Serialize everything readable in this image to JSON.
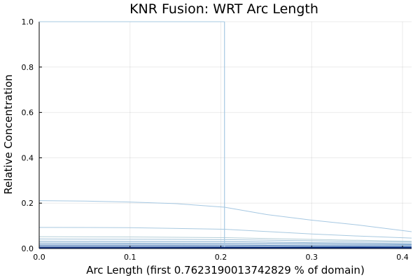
{
  "chart_data": {
    "type": "line",
    "title": "KNR Fusion: WRT Arc Length",
    "xlabel": "Arc Length (first 0.7623190013742829 % of domain)",
    "ylabel": "Relative Concentration",
    "xlim": [
      0,
      0.41
    ],
    "ylim": [
      0,
      1.0
    ],
    "xticks": [
      "0.0",
      "0.1",
      "0.2",
      "0.3",
      "0.4"
    ],
    "yticks": [
      "0.0",
      "0.2",
      "0.4",
      "0.6",
      "0.8",
      "1.0"
    ],
    "grid": true,
    "legend": "none",
    "vertical_line": {
      "x": 0.204,
      "y": [
        0,
        1.0
      ]
    },
    "series": [
      {
        "color": "#a6c8e2",
        "points": [
          [
            0,
            0.211
          ],
          [
            0.05,
            0.209
          ],
          [
            0.1,
            0.205
          ],
          [
            0.15,
            0.198
          ],
          [
            0.204,
            0.182
          ],
          [
            0.25,
            0.15
          ],
          [
            0.3,
            0.125
          ],
          [
            0.35,
            0.104
          ],
          [
            0.41,
            0.074
          ]
        ]
      },
      {
        "color": "#a8c9e0",
        "points": [
          [
            0,
            0.093
          ],
          [
            0.1,
            0.092
          ],
          [
            0.204,
            0.085
          ],
          [
            0.25,
            0.075
          ],
          [
            0.3,
            0.064
          ],
          [
            0.35,
            0.055
          ],
          [
            0.41,
            0.046
          ]
        ]
      },
      {
        "color": "#b5cfd8",
        "points": [
          [
            0,
            0.052
          ],
          [
            0.1,
            0.051
          ],
          [
            0.204,
            0.048
          ],
          [
            0.3,
            0.04
          ],
          [
            0.41,
            0.032
          ]
        ]
      },
      {
        "color": "#9fc0d6",
        "points": [
          [
            0,
            0.042
          ],
          [
            0.1,
            0.041
          ],
          [
            0.204,
            0.039
          ],
          [
            0.3,
            0.034
          ],
          [
            0.41,
            0.028
          ]
        ]
      },
      {
        "color": "#7fa9cc",
        "points": [
          [
            0,
            0.032
          ],
          [
            0.1,
            0.031
          ],
          [
            0.204,
            0.03
          ],
          [
            0.3,
            0.026
          ],
          [
            0.41,
            0.022
          ]
        ]
      },
      {
        "color": "#5b8fc0",
        "points": [
          [
            0,
            0.024
          ],
          [
            0.1,
            0.023
          ],
          [
            0.204,
            0.022
          ],
          [
            0.3,
            0.02
          ],
          [
            0.41,
            0.017
          ]
        ]
      },
      {
        "color": "#3f74b3",
        "points": [
          [
            0,
            0.016
          ],
          [
            0.1,
            0.016
          ],
          [
            0.204,
            0.015
          ],
          [
            0.3,
            0.013
          ],
          [
            0.41,
            0.012
          ]
        ]
      },
      {
        "color": "#2458a3",
        "points": [
          [
            0,
            0.01
          ],
          [
            0.1,
            0.01
          ],
          [
            0.204,
            0.009
          ],
          [
            0.3,
            0.008
          ],
          [
            0.41,
            0.007
          ]
        ]
      },
      {
        "color": "#143e8e",
        "points": [
          [
            0,
            0.005
          ],
          [
            0.204,
            0.005
          ],
          [
            0.41,
            0.004
          ]
        ]
      },
      {
        "color": "#0b2870",
        "points": [
          [
            0,
            0.002
          ],
          [
            0.204,
            0.002
          ],
          [
            0.41,
            0.002
          ]
        ]
      }
    ],
    "colors": {
      "vertical_line": "#a6c8e2"
    }
  }
}
